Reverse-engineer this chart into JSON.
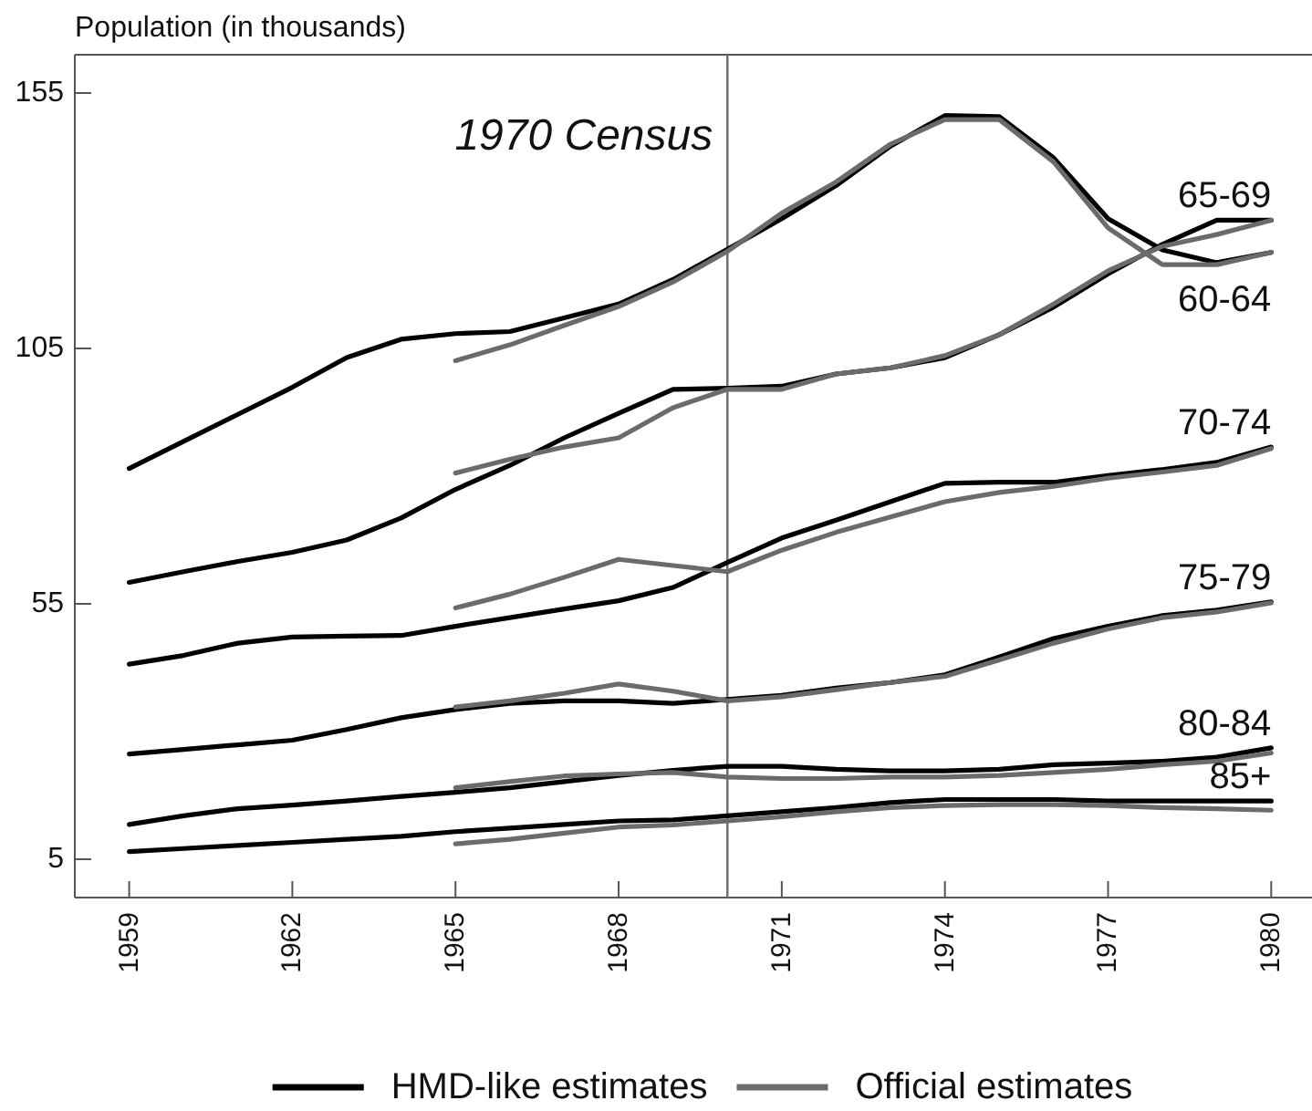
{
  "chart_data": {
    "type": "line",
    "ylabel": "Population (in thousands)",
    "x": [
      1959,
      1960,
      1961,
      1962,
      1963,
      1964,
      1965,
      1966,
      1967,
      1968,
      1969,
      1970,
      1971,
      1972,
      1973,
      1974,
      1975,
      1976,
      1977,
      1978,
      1979,
      1980
    ],
    "xlim": [
      1958,
      1980.75
    ],
    "xticks": [
      1959,
      1962,
      1965,
      1968,
      1971,
      1974,
      1977,
      1980
    ],
    "ylim": [
      -2.5,
      162.5
    ],
    "yticks": [
      5,
      55,
      105,
      155
    ],
    "line_style": "solid",
    "legend": "bottom",
    "series": [
      {
        "name": "HMD-like estimates",
        "color": "#000000",
        "values": [
          81.5,
          86.8,
          92.1,
          97.4,
          103.2,
          106.8,
          107.9,
          108.3,
          111.0,
          113.7,
          118.5,
          124.4,
          130.4,
          136.9,
          144.6,
          150.6,
          150.4,
          142.3,
          130.4,
          124.3,
          121.8,
          123.8
        ]
      },
      {
        "color": "#000000",
        "values": [
          59.2,
          61.3,
          63.3,
          65.1,
          67.5,
          71.8,
          77.4,
          82.1,
          87.5,
          92.3,
          97.0,
          97.2,
          97.6,
          100.0,
          101.2,
          103.2,
          107.7,
          113.1,
          119.6,
          125.4,
          130.1,
          130.1
        ]
      },
      {
        "color": "#000000",
        "values": [
          43.2,
          44.9,
          47.3,
          48.5,
          48.7,
          48.8,
          50.6,
          52.3,
          54.0,
          55.6,
          58.2,
          63.1,
          67.9,
          71.4,
          75.0,
          78.6,
          78.8,
          78.8,
          80.1,
          81.3,
          82.7,
          85.7
        ]
      },
      {
        "color": "#000000",
        "values": [
          25.6,
          26.5,
          27.4,
          28.3,
          30.4,
          32.7,
          34.3,
          35.5,
          36.0,
          36.0,
          35.5,
          36.3,
          37.1,
          38.5,
          39.6,
          41.1,
          44.6,
          48.2,
          50.6,
          52.7,
          53.8,
          55.4
        ]
      },
      {
        "color": "#000000",
        "values": [
          11.8,
          13.5,
          14.9,
          15.6,
          16.4,
          17.3,
          18.1,
          19.0,
          20.2,
          21.4,
          22.4,
          23.2,
          23.2,
          22.6,
          22.3,
          22.3,
          22.6,
          23.5,
          23.8,
          24.2,
          25.0,
          26.8
        ]
      },
      {
        "color": "#000000",
        "values": [
          6.5,
          7.1,
          7.7,
          8.3,
          8.9,
          9.5,
          10.4,
          11.1,
          11.8,
          12.5,
          12.7,
          13.5,
          14.3,
          15.1,
          16.1,
          16.7,
          16.7,
          16.7,
          16.4,
          16.4,
          16.4,
          16.4
        ]
      },
      {
        "name": "Official estimates",
        "color": "#6b6b6b",
        "x": [
          1965,
          1966,
          1967,
          1968,
          1969,
          1970,
          1971,
          1972,
          1973,
          1974,
          1975,
          1976,
          1977,
          1978,
          1979,
          1980
        ],
        "values": [
          102.6,
          105.7,
          109.5,
          113.2,
          118.0,
          124.0,
          131.5,
          137.6,
          145.0,
          149.8,
          149.8,
          141.5,
          128.6,
          121.4,
          121.4,
          123.8
        ]
      },
      {
        "color": "#6b6b6b",
        "x": [
          1965,
          1966,
          1967,
          1968,
          1969,
          1970,
          1971,
          1972,
          1973,
          1974,
          1975,
          1976,
          1977,
          1978,
          1979,
          1980
        ],
        "values": [
          80.6,
          83.3,
          85.7,
          87.5,
          93.4,
          97.0,
          97.0,
          100.0,
          101.2,
          103.6,
          107.7,
          113.7,
          120.2,
          125.0,
          127.3,
          130.1
        ]
      },
      {
        "color": "#6b6b6b",
        "x": [
          1965,
          1966,
          1967,
          1968,
          1969,
          1970,
          1971,
          1972,
          1973,
          1974,
          1975,
          1976,
          1977,
          1978,
          1979,
          1980
        ],
        "values": [
          54.2,
          56.9,
          60.2,
          63.7,
          62.5,
          61.3,
          65.5,
          69.0,
          72.0,
          75.0,
          76.8,
          78.0,
          79.6,
          80.8,
          82.1,
          85.4
        ]
      },
      {
        "color": "#6b6b6b",
        "x": [
          1965,
          1966,
          1967,
          1968,
          1969,
          1970,
          1971,
          1972,
          1973,
          1974,
          1975,
          1976,
          1977,
          1978,
          1979,
          1980
        ],
        "values": [
          34.8,
          36.0,
          37.5,
          39.3,
          37.9,
          36.0,
          36.8,
          38.2,
          39.6,
          40.8,
          44.0,
          47.3,
          50.1,
          52.3,
          53.4,
          55.2
        ]
      },
      {
        "color": "#6b6b6b",
        "x": [
          1965,
          1966,
          1967,
          1968,
          1969,
          1970,
          1971,
          1972,
          1973,
          1974,
          1975,
          1976,
          1977,
          1978,
          1979,
          1980
        ],
        "values": [
          19.0,
          20.2,
          21.3,
          21.7,
          22.0,
          21.1,
          20.8,
          20.8,
          21.1,
          21.1,
          21.4,
          22.0,
          22.6,
          23.5,
          24.2,
          25.8
        ]
      },
      {
        "color": "#6b6b6b",
        "x": [
          1965,
          1966,
          1967,
          1968,
          1969,
          1970,
          1971,
          1972,
          1973,
          1974,
          1975,
          1976,
          1977,
          1978,
          1979,
          1980
        ],
        "values": [
          8.0,
          8.9,
          10.1,
          11.3,
          11.7,
          12.5,
          13.3,
          14.3,
          15.1,
          15.5,
          15.7,
          15.7,
          15.5,
          15.1,
          14.9,
          14.6
        ]
      }
    ],
    "ref_lines": [
      {
        "axis": "x",
        "value": 1970,
        "label": "1970 Census",
        "color": "#6b6b6b"
      }
    ],
    "annotations": [
      "60-64",
      "65-69",
      "70-74",
      "75-79",
      "80-84",
      "85+"
    ]
  }
}
